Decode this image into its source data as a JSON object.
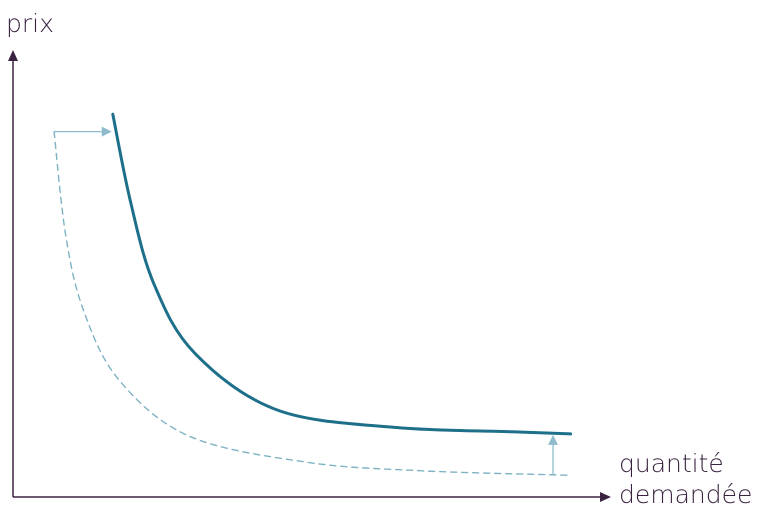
{
  "chart_data": {
    "type": "line",
    "title": "",
    "ylabel": "prix",
    "xlabel_lines": [
      "quantité",
      "demandée"
    ],
    "ticks": "none",
    "grid": false,
    "legend": "none",
    "series": [
      {
        "style": "dashed",
        "color": "#7fb3c4",
        "points": [
          [
            0.07,
            0.84
          ],
          [
            0.09,
            0.6
          ],
          [
            0.12,
            0.43
          ],
          [
            0.18,
            0.27
          ],
          [
            0.3,
            0.14
          ],
          [
            0.5,
            0.08
          ],
          [
            0.7,
            0.06
          ],
          [
            0.95,
            0.05
          ]
        ]
      },
      {
        "style": "solid",
        "color": "#1e6f8a",
        "points": [
          [
            0.17,
            0.88
          ],
          [
            0.2,
            0.68
          ],
          [
            0.24,
            0.49
          ],
          [
            0.31,
            0.33
          ],
          [
            0.45,
            0.2
          ],
          [
            0.65,
            0.16
          ],
          [
            0.85,
            0.15
          ],
          [
            0.95,
            0.145
          ]
        ]
      }
    ],
    "annotations": [
      {
        "type": "arrow",
        "direction": "right",
        "color": "#8fbccc",
        "from": [
          0.07,
          0.84
        ],
        "to": [
          0.17,
          0.84
        ]
      },
      {
        "type": "arrow",
        "direction": "up",
        "color": "#8fbccc",
        "from": [
          0.92,
          0.05
        ],
        "to": [
          0.92,
          0.145
        ]
      }
    ],
    "axis_color": "#3a2340"
  }
}
